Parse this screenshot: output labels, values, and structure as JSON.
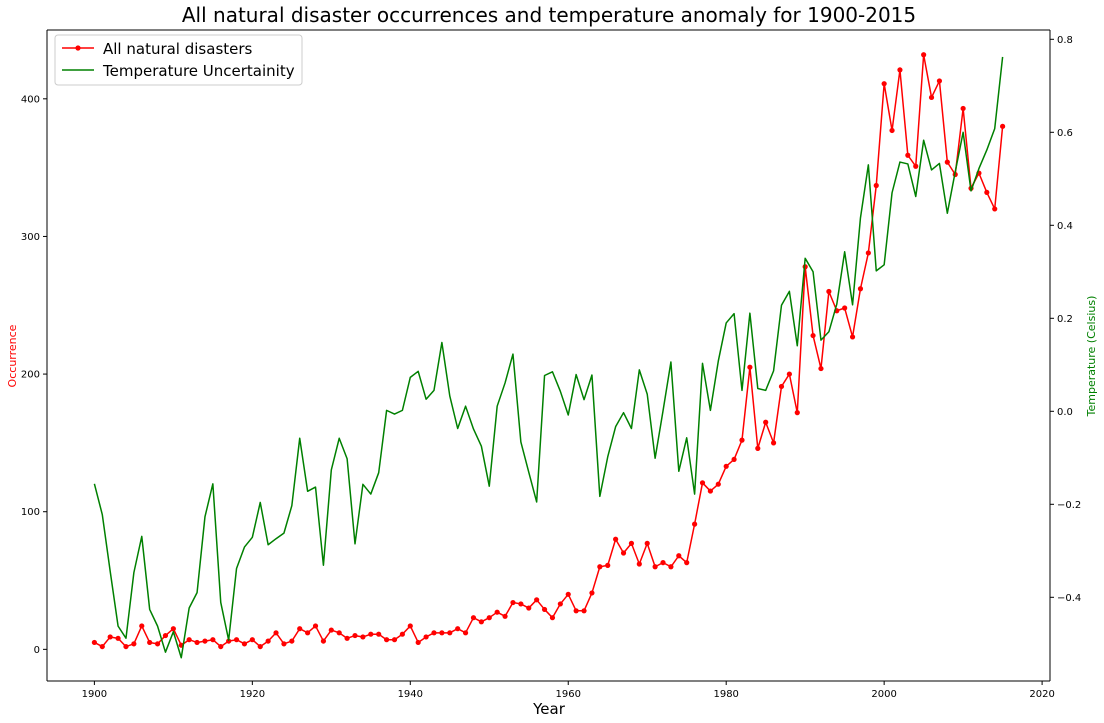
{
  "chart_data": {
    "type": "line",
    "title": "All natural disaster occurrences and temperature anomaly for 1900-2015",
    "xlabel": "Year",
    "ylabel_left": "Occurrence",
    "ylabel_right": "Temperature (Celsius)",
    "xlim": [
      1894,
      2021
    ],
    "ylim_left": [
      -23,
      450
    ],
    "ylim_right": [
      -0.58,
      0.82
    ],
    "x_ticks": [
      1900,
      1920,
      1940,
      1960,
      1980,
      2000,
      2020
    ],
    "y_ticks_left": [
      0,
      100,
      200,
      300,
      400
    ],
    "y_ticks_right": [
      -0.4,
      -0.2,
      0.0,
      0.2,
      0.4,
      0.6,
      0.8
    ],
    "y_tick_labels_right": [
      "−0.4",
      "−0.2",
      "0.0",
      "0.2",
      "0.4",
      "0.6",
      "0.8"
    ],
    "legend_position": "top-left",
    "grid": false,
    "x": [
      1900,
      1901,
      1902,
      1903,
      1904,
      1905,
      1906,
      1907,
      1908,
      1909,
      1910,
      1911,
      1912,
      1913,
      1914,
      1915,
      1916,
      1917,
      1918,
      1919,
      1920,
      1921,
      1922,
      1923,
      1924,
      1925,
      1926,
      1927,
      1928,
      1929,
      1930,
      1931,
      1932,
      1933,
      1934,
      1935,
      1936,
      1937,
      1938,
      1939,
      1940,
      1941,
      1942,
      1943,
      1944,
      1945,
      1946,
      1947,
      1948,
      1949,
      1950,
      1951,
      1952,
      1953,
      1954,
      1955,
      1956,
      1957,
      1958,
      1959,
      1960,
      1961,
      1962,
      1963,
      1964,
      1965,
      1966,
      1967,
      1968,
      1969,
      1970,
      1971,
      1972,
      1973,
      1974,
      1975,
      1976,
      1977,
      1978,
      1979,
      1980,
      1981,
      1982,
      1983,
      1984,
      1985,
      1986,
      1987,
      1988,
      1989,
      1990,
      1991,
      1992,
      1993,
      1994,
      1995,
      1996,
      1997,
      1998,
      1999,
      2000,
      2001,
      2002,
      2003,
      2004,
      2005,
      2006,
      2007,
      2008,
      2009,
      2010,
      2011,
      2012,
      2013,
      2014,
      2015
    ],
    "series": [
      {
        "name": "All natural disasters",
        "axis": "left",
        "color": "#ff0000",
        "marker": "circle",
        "values": [
          5,
          2,
          9,
          8,
          2,
          4,
          17,
          5,
          4,
          10,
          15,
          3,
          7,
          5,
          6,
          7,
          2,
          6,
          7,
          4,
          7,
          2,
          6,
          12,
          4,
          6,
          15,
          12,
          17,
          6,
          14,
          12,
          8,
          10,
          9,
          11,
          11,
          7,
          7,
          11,
          17,
          5,
          9,
          12,
          12,
          12,
          15,
          12,
          23,
          20,
          23,
          27,
          24,
          34,
          33,
          30,
          36,
          29,
          23,
          33,
          40,
          28,
          28,
          41,
          60,
          61,
          80,
          70,
          77,
          62,
          77,
          60,
          63,
          60,
          68,
          63,
          91,
          121,
          115,
          120,
          133,
          138,
          152,
          205,
          146,
          165,
          150,
          191,
          200,
          172,
          278,
          228,
          204,
          260,
          246,
          248,
          227,
          262,
          288,
          337,
          411,
          377,
          421,
          359,
          351,
          432,
          401,
          413,
          354,
          345,
          393,
          335,
          346,
          332,
          320,
          380
        ]
      },
      {
        "name": "Temperature Uncertainity",
        "axis": "right",
        "color": "#008000",
        "marker": "none",
        "values": [
          -0.156,
          -0.222,
          -0.344,
          -0.462,
          -0.488,
          -0.347,
          -0.269,
          -0.426,
          -0.462,
          -0.518,
          -0.474,
          -0.53,
          -0.423,
          -0.39,
          -0.227,
          -0.156,
          -0.411,
          -0.492,
          -0.338,
          -0.292,
          -0.271,
          -0.196,
          -0.287,
          -0.274,
          -0.262,
          -0.203,
          -0.058,
          -0.172,
          -0.163,
          -0.331,
          -0.126,
          -0.058,
          -0.102,
          -0.285,
          -0.157,
          -0.178,
          -0.132,
          0.002,
          -0.006,
          0.002,
          0.073,
          0.086,
          0.026,
          0.045,
          0.148,
          0.033,
          -0.037,
          0.011,
          -0.038,
          -0.075,
          -0.161,
          0.011,
          0.061,
          0.123,
          -0.066,
          -0.131,
          -0.195,
          0.077,
          0.085,
          0.043,
          -0.008,
          0.079,
          0.025,
          0.078,
          -0.183,
          -0.098,
          -0.033,
          -0.003,
          -0.037,
          0.089,
          0.037,
          -0.101,
          0.001,
          0.106,
          -0.129,
          -0.057,
          -0.178,
          0.103,
          0.002,
          0.108,
          0.19,
          0.21,
          0.045,
          0.211,
          0.049,
          0.045,
          0.087,
          0.228,
          0.258,
          0.141,
          0.329,
          0.3,
          0.153,
          0.171,
          0.23,
          0.343,
          0.229,
          0.416,
          0.53,
          0.302,
          0.315,
          0.47,
          0.536,
          0.532,
          0.462,
          0.583,
          0.519,
          0.533,
          0.426,
          0.515,
          0.6,
          0.474,
          0.522,
          0.562,
          0.608,
          0.762
        ]
      }
    ]
  }
}
